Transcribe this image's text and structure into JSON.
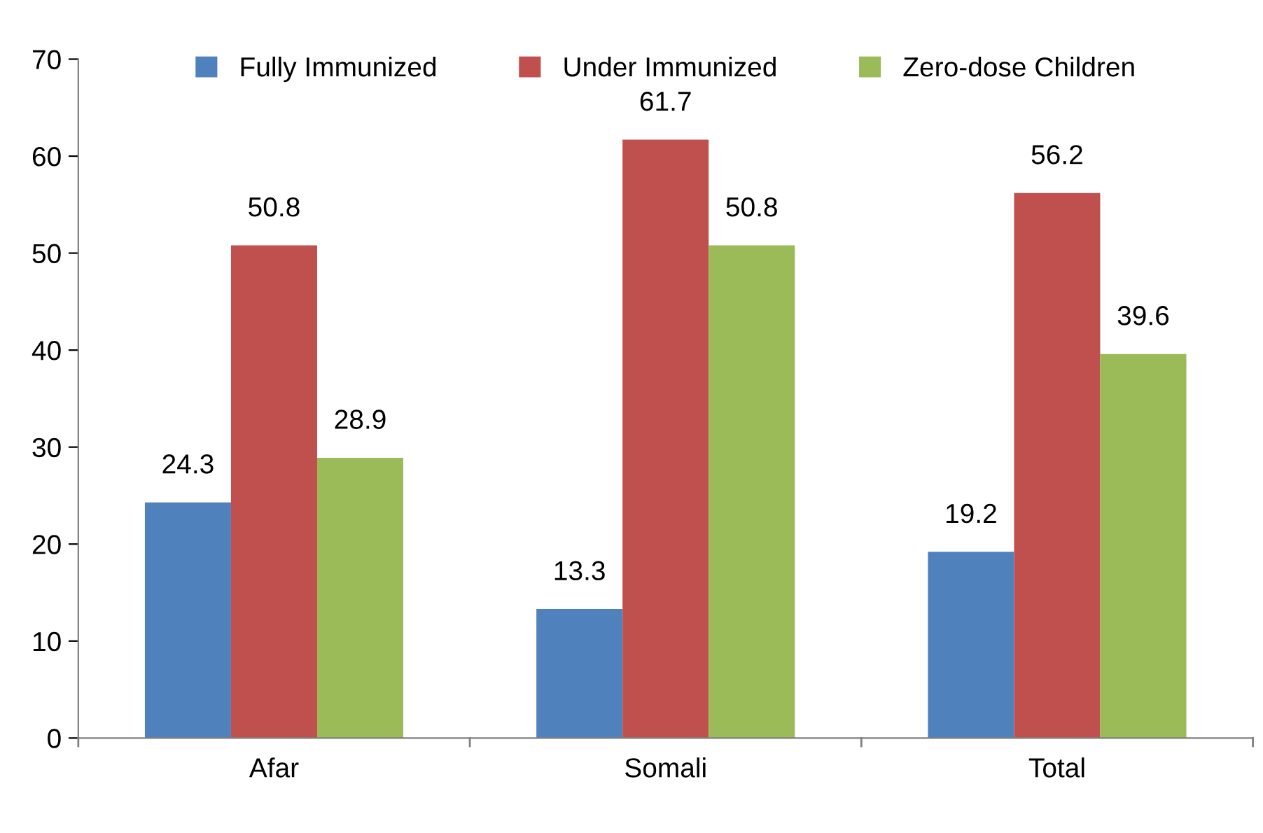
{
  "chart_data": {
    "type": "bar",
    "categories": [
      "Afar",
      "Somali",
      "Total"
    ],
    "series": [
      {
        "name": "Fully Immunized",
        "color": "#4f81bd",
        "values": [
          24.3,
          13.3,
          19.2
        ]
      },
      {
        "name": "Under Immunized",
        "color": "#c0504d",
        "values": [
          50.8,
          61.7,
          56.2
        ]
      },
      {
        "name": "Zero-dose Children",
        "color": "#9bbb59",
        "values": [
          28.9,
          50.8,
          39.6
        ]
      }
    ],
    "ylim": [
      0,
      70
    ],
    "yticks": [
      0,
      10,
      20,
      30,
      40,
      50,
      60,
      70
    ],
    "data_labels": true,
    "legend": "top",
    "grid": false
  }
}
